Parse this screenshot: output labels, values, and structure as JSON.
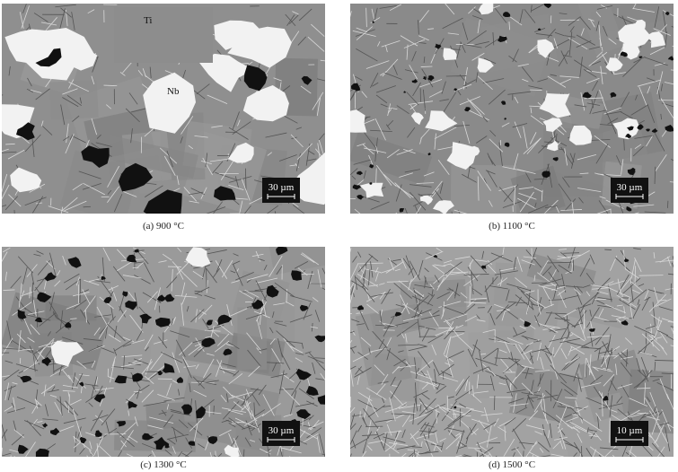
{
  "figure": {
    "panels": [
      {
        "caption": "(a) 900 °C",
        "scale_bar": "30 µm",
        "labels": [
          "Ti",
          "Nb"
        ]
      },
      {
        "caption": "(b) 1100 °C",
        "scale_bar": "30 µm"
      },
      {
        "caption": "(c) 1300 °C",
        "scale_bar": "30 µm"
      },
      {
        "caption": "(d) 1500 °C",
        "scale_bar": "10 µm"
      }
    ]
  }
}
